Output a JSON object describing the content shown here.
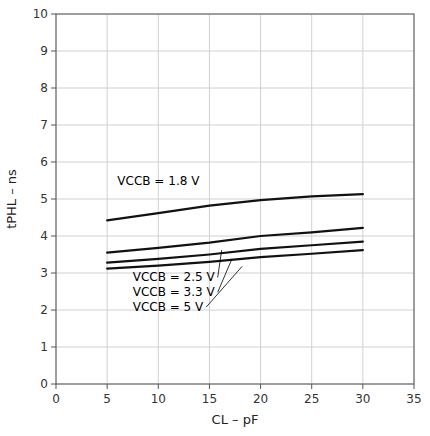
{
  "chart_data": {
    "type": "line",
    "xlabel": "CL – pF",
    "ylabel": "tPHL – ns",
    "x": [
      5,
      10,
      15,
      20,
      25,
      30
    ],
    "series": [
      {
        "color": "#111111",
        "values": [
          4.42,
          4.62,
          4.82,
          4.97,
          5.07,
          5.13
        ]
      },
      {
        "color": "#111111",
        "values": [
          3.55,
          3.68,
          3.82,
          4.0,
          4.1,
          4.22
        ]
      },
      {
        "color": "#111111",
        "values": [
          3.28,
          3.38,
          3.5,
          3.65,
          3.75,
          3.85
        ]
      },
      {
        "color": "#111111",
        "values": [
          3.12,
          3.2,
          3.3,
          3.43,
          3.52,
          3.62
        ]
      }
    ],
    "annotations": [
      {
        "text": "VCCB = 1.8 V",
        "x": 6.0,
        "y": 5.3
      },
      {
        "text": "VCCB = 2.5 V",
        "x": 7.5,
        "y": 2.88,
        "point_x": 16.2,
        "point_y": 3.62
      },
      {
        "text": "VCCB = 3.3 V",
        "x": 7.5,
        "y": 2.48,
        "point_x": 17.2,
        "point_y": 3.38
      },
      {
        "text": "VCCB = 5 V",
        "x": 7.5,
        "y": 2.08,
        "point_x": 18.2,
        "point_y": 3.18
      }
    ],
    "xlim": [
      0,
      35
    ],
    "ylim": [
      0,
      10
    ],
    "xticks": [
      0,
      5,
      10,
      15,
      20,
      25,
      30,
      35
    ],
    "yticks": [
      0,
      1,
      2,
      3,
      4,
      5,
      6,
      7,
      8,
      9,
      10
    ],
    "grid": true
  }
}
